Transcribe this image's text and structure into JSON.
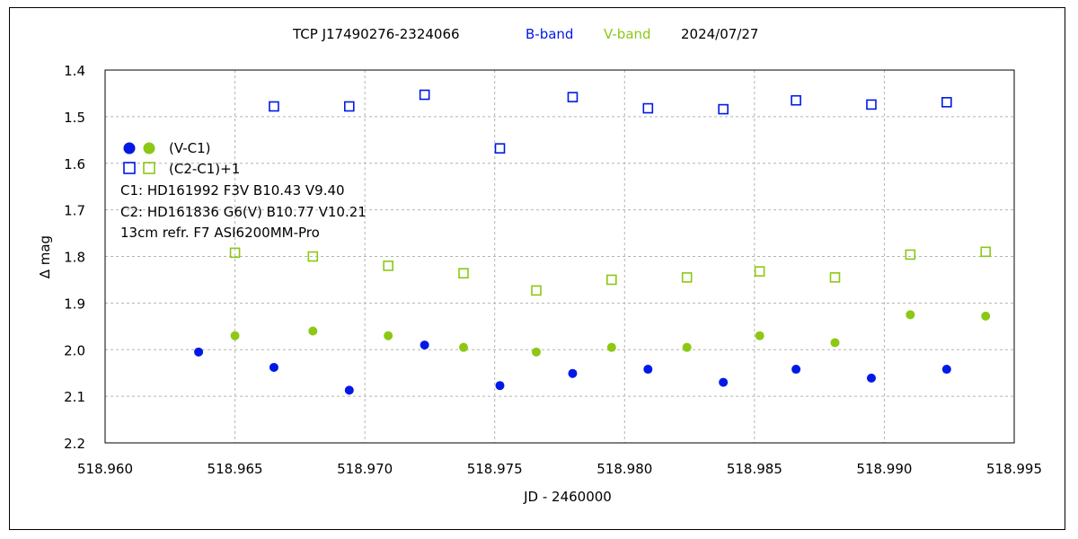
{
  "chart_data": {
    "type": "scatter",
    "title": {
      "object": "TCP J17490276-2324066",
      "band1": "B-band",
      "band2": "V-band",
      "date": "2024/07/27"
    },
    "xlabel": "JD - 2460000",
    "ylabel": "∆ mag",
    "xlim": [
      518.96,
      518.995
    ],
    "ylim": [
      1.4,
      2.2
    ],
    "y_inverted": true,
    "grid": true,
    "x_ticks": [
      "518.960",
      "518.965",
      "518.970",
      "518.975",
      "518.980",
      "518.985",
      "518.990",
      "518.995"
    ],
    "x_tick_values": [
      518.96,
      518.965,
      518.97,
      518.975,
      518.98,
      518.985,
      518.99,
      518.995
    ],
    "y_ticks": [
      "1.4",
      "1.5",
      "1.6",
      "1.7",
      "1.8",
      "1.9",
      "2.0",
      "2.1",
      "2.2"
    ],
    "y_tick_values": [
      1.4,
      1.5,
      1.6,
      1.7,
      1.8,
      1.9,
      2.0,
      2.1,
      2.2
    ],
    "legend": {
      "position": "upper-left",
      "entry_filled": "(V-C1)",
      "entry_open": "(C2-C1)+1",
      "notes": [
        "C1: HD161992 F3V  B10.43  V9.40",
        "C2: HD161836 G6(V)  B10.77  V10.21",
        "13cm refr. F7   ASI6200MM-Pro"
      ]
    },
    "colors": {
      "B": "#0019e6",
      "V": "#8cc814"
    },
    "series": [
      {
        "band": "B",
        "marker": "filled",
        "x": [
          518.9636,
          518.9665,
          518.9694,
          518.9723,
          518.9752,
          518.978,
          518.9809,
          518.9838,
          518.9866,
          518.9895,
          518.9924
        ],
        "y": [
          2.005,
          2.038,
          2.087,
          1.99,
          2.077,
          2.051,
          2.042,
          2.07,
          2.042,
          2.061,
          2.042
        ]
      },
      {
        "band": "V",
        "marker": "filled",
        "x": [
          518.965,
          518.968,
          518.9709,
          518.9738,
          518.9766,
          518.9795,
          518.9824,
          518.9852,
          518.9881,
          518.991,
          518.9939
        ],
        "y": [
          1.97,
          1.96,
          1.97,
          1.995,
          2.005,
          1.995,
          1.995,
          1.97,
          1.985,
          1.925,
          1.928
        ]
      },
      {
        "band": "B",
        "marker": "open",
        "x": [
          518.9665,
          518.9694,
          518.9723,
          518.9752,
          518.978,
          518.9809,
          518.9838,
          518.9866,
          518.9895,
          518.9924
        ],
        "y": [
          1.478,
          1.478,
          1.453,
          1.568,
          1.458,
          1.482,
          1.484,
          1.465,
          1.474,
          1.469
        ]
      },
      {
        "band": "V",
        "marker": "open",
        "x": [
          518.965,
          518.968,
          518.9709,
          518.9738,
          518.9766,
          518.9795,
          518.9824,
          518.9852,
          518.9881,
          518.991,
          518.9939
        ],
        "y": [
          1.792,
          1.8,
          1.82,
          1.836,
          1.873,
          1.85,
          1.845,
          1.832,
          1.845,
          1.796,
          1.79
        ]
      }
    ]
  }
}
